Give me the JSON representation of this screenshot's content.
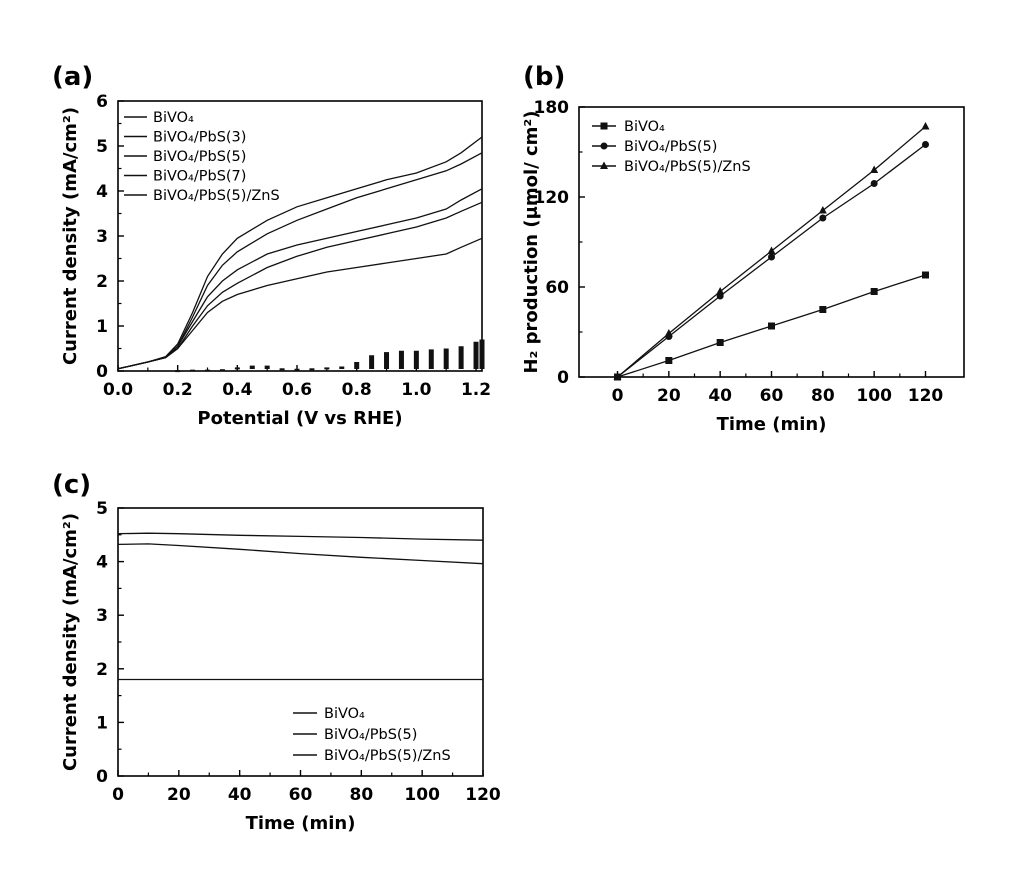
{
  "chart_data": [
    {
      "panel_label": "(a)",
      "type": "line",
      "xlabel": "Potential (V vs RHE)",
      "ylabel": "Current density (mA/cm²)",
      "xlim": [
        0.0,
        1.22
      ],
      "ylim": [
        0,
        6
      ],
      "xticks": [
        0.0,
        0.2,
        0.4,
        0.6,
        0.8,
        1.0,
        1.2
      ],
      "yticks": [
        0,
        1,
        2,
        3,
        4,
        5,
        6
      ],
      "xtick_labels": [
        "0.0",
        "0.2",
        "0.4",
        "0.6",
        "0.8",
        "1.0",
        "1.2"
      ],
      "ytick_labels": [
        "0",
        "1",
        "2",
        "3",
        "4",
        "5",
        "6"
      ],
      "legend_position": "top-left",
      "grid": false,
      "series": [
        {
          "name": "BiVO₄",
          "x": [
            0.0,
            0.1,
            0.16,
            0.2,
            0.25,
            0.3,
            0.35,
            0.4,
            0.5,
            0.6,
            0.7,
            0.8,
            0.9,
            1.0,
            1.1,
            1.15,
            1.22
          ],
          "y": [
            0.05,
            0.2,
            0.3,
            0.5,
            0.9,
            1.3,
            1.55,
            1.7,
            1.9,
            2.05,
            2.2,
            2.3,
            2.4,
            2.5,
            2.6,
            2.75,
            2.95
          ]
        },
        {
          "name": "BiVO₄/PbS(3)",
          "x": [
            0.0,
            0.1,
            0.16,
            0.2,
            0.25,
            0.3,
            0.35,
            0.4,
            0.5,
            0.6,
            0.7,
            0.8,
            0.9,
            1.0,
            1.1,
            1.15,
            1.22
          ],
          "y": [
            0.05,
            0.2,
            0.3,
            0.5,
            1.0,
            1.45,
            1.75,
            1.95,
            2.3,
            2.55,
            2.75,
            2.9,
            3.05,
            3.2,
            3.4,
            3.55,
            3.75
          ]
        },
        {
          "name": "BiVO₄/PbS(5)",
          "x": [
            0.0,
            0.1,
            0.16,
            0.2,
            0.25,
            0.3,
            0.35,
            0.4,
            0.5,
            0.6,
            0.7,
            0.8,
            0.9,
            1.0,
            1.1,
            1.15,
            1.22
          ],
          "y": [
            0.05,
            0.2,
            0.3,
            0.55,
            1.2,
            1.9,
            2.35,
            2.65,
            3.05,
            3.35,
            3.6,
            3.85,
            4.05,
            4.25,
            4.45,
            4.6,
            4.85
          ]
        },
        {
          "name": "BiVO₄/PbS(7)",
          "x": [
            0.0,
            0.1,
            0.16,
            0.2,
            0.25,
            0.3,
            0.35,
            0.4,
            0.5,
            0.6,
            0.7,
            0.8,
            0.9,
            1.0,
            1.1,
            1.15,
            1.22
          ],
          "y": [
            0.05,
            0.2,
            0.3,
            0.55,
            1.1,
            1.65,
            2.0,
            2.25,
            2.6,
            2.8,
            2.95,
            3.1,
            3.25,
            3.4,
            3.6,
            3.8,
            4.05
          ]
        },
        {
          "name": "BiVO₄/PbS(5)/ZnS",
          "x": [
            0.0,
            0.1,
            0.16,
            0.2,
            0.25,
            0.3,
            0.35,
            0.4,
            0.5,
            0.6,
            0.7,
            0.8,
            0.9,
            1.0,
            1.1,
            1.15,
            1.22
          ],
          "y": [
            0.05,
            0.2,
            0.32,
            0.6,
            1.3,
            2.1,
            2.6,
            2.95,
            3.35,
            3.65,
            3.85,
            4.05,
            4.25,
            4.4,
            4.65,
            4.85,
            5.2
          ]
        }
      ],
      "dark_current": {
        "x": [
          0.2,
          0.25,
          0.3,
          0.35,
          0.4,
          0.45,
          0.5,
          0.55,
          0.6,
          0.65,
          0.7,
          0.75,
          0.8,
          0.85,
          0.9,
          0.95,
          1.0,
          1.05,
          1.1,
          1.15,
          1.2,
          1.22
        ],
        "y": [
          0.02,
          0.03,
          0.03,
          0.04,
          0.08,
          0.12,
          0.12,
          0.06,
          0.05,
          0.06,
          0.08,
          0.1,
          0.2,
          0.35,
          0.42,
          0.45,
          0.45,
          0.48,
          0.5,
          0.55,
          0.65,
          0.7
        ]
      }
    },
    {
      "panel_label": "(b)",
      "type": "line",
      "xlabel": "Time (min)",
      "ylabel": "H₂ production (μmol/ cm²)",
      "xlim": [
        -15,
        135
      ],
      "ylim": [
        0,
        180
      ],
      "xticks": [
        0,
        20,
        40,
        60,
        80,
        100,
        120
      ],
      "yticks": [
        0,
        60,
        120,
        180
      ],
      "xtick_labels": [
        "0",
        "20",
        "40",
        "60",
        "80",
        "100",
        "120"
      ],
      "ytick_labels": [
        "0",
        "60",
        "120",
        "180"
      ],
      "legend_position": "top-left",
      "grid": false,
      "series": [
        {
          "name": "BiVO₄",
          "marker": "square",
          "x": [
            0,
            20,
            40,
            60,
            80,
            100,
            120
          ],
          "y": [
            0,
            11,
            23,
            34,
            45,
            57,
            68
          ]
        },
        {
          "name": "BiVO₄/PbS(5)",
          "marker": "circle",
          "x": [
            0,
            20,
            40,
            60,
            80,
            100,
            120
          ],
          "y": [
            0,
            27,
            54,
            80,
            106,
            129,
            155
          ]
        },
        {
          "name": "BiVO₄/PbS(5)/ZnS",
          "marker": "triangle",
          "x": [
            0,
            20,
            40,
            60,
            80,
            100,
            120
          ],
          "y": [
            0,
            29,
            57,
            84,
            111,
            138,
            167
          ]
        }
      ]
    },
    {
      "panel_label": "(c)",
      "type": "line",
      "xlabel": "Time (min)",
      "ylabel": "Current density (mA/cm²)",
      "xlim": [
        0,
        120
      ],
      "ylim": [
        0,
        5
      ],
      "xticks": [
        0,
        20,
        40,
        60,
        80,
        100,
        120
      ],
      "yticks": [
        0,
        1,
        2,
        3,
        4,
        5
      ],
      "xtick_labels": [
        "0",
        "20",
        "40",
        "60",
        "80",
        "100",
        "120"
      ],
      "ytick_labels": [
        "0",
        "1",
        "2",
        "3",
        "4",
        "5"
      ],
      "legend_position": "bottom-right",
      "grid": false,
      "series": [
        {
          "name": "BiVO₄",
          "x": [
            0,
            20,
            40,
            60,
            80,
            100,
            120
          ],
          "y": [
            1.8,
            1.8,
            1.8,
            1.8,
            1.8,
            1.8,
            1.8
          ]
        },
        {
          "name": "BiVO₄/PbS(5)",
          "x": [
            0,
            10,
            20,
            40,
            60,
            80,
            100,
            120
          ],
          "y": [
            4.32,
            4.33,
            4.3,
            4.23,
            4.15,
            4.08,
            4.02,
            3.96
          ]
        },
        {
          "name": "BiVO₄/PbS(5)/ZnS",
          "x": [
            0,
            10,
            20,
            40,
            60,
            80,
            100,
            120
          ],
          "y": [
            4.52,
            4.53,
            4.52,
            4.49,
            4.47,
            4.45,
            4.42,
            4.4
          ]
        }
      ]
    }
  ]
}
